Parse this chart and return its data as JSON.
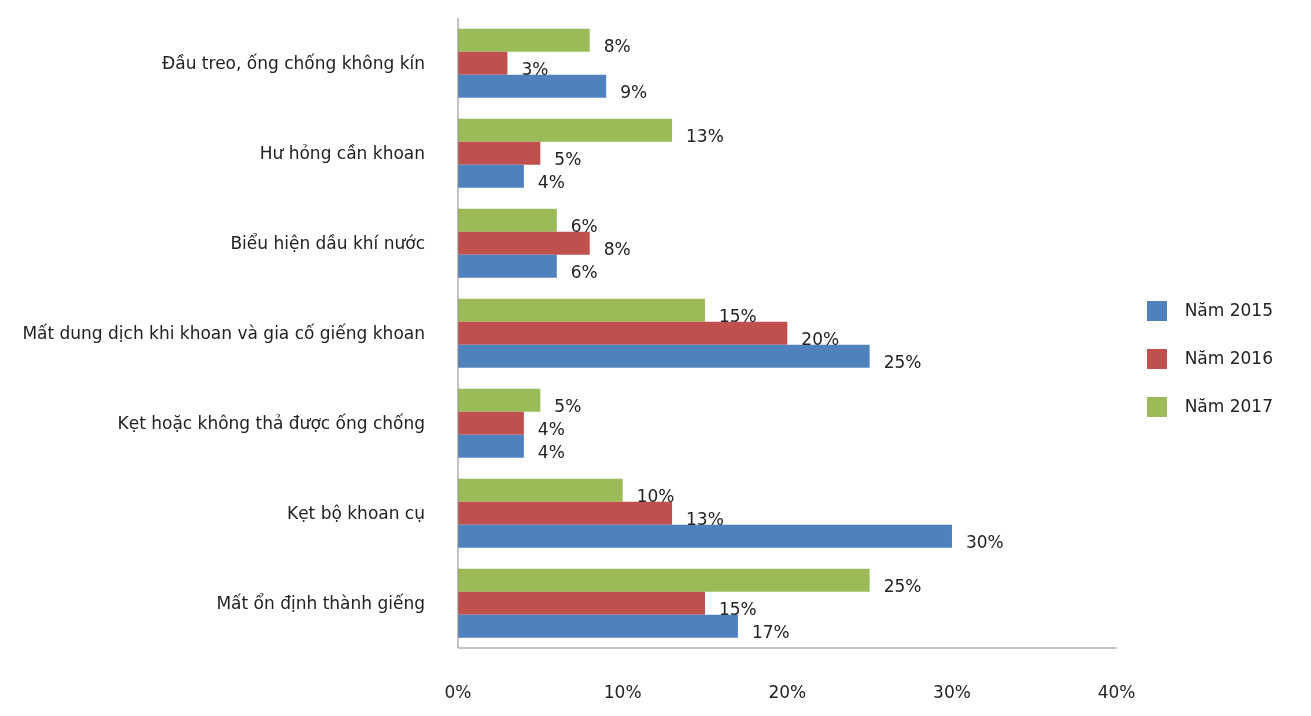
{
  "chart_data": {
    "type": "bar",
    "orientation": "horizontal",
    "categories": [
      "Đầu treo, ống chống không kín",
      "Hư hỏng cần khoan",
      "Biểu hiện dầu khí nước",
      "Mất dung dịch khi khoan và gia cố giếng khoan",
      "Kẹt hoặc không thả được ống chống",
      "Kẹt bộ khoan cụ",
      "Mất ổn định thành giếng"
    ],
    "series": [
      {
        "name": "Năm 2017",
        "color": "#9bbb59",
        "values": [
          8,
          13,
          6,
          15,
          5,
          10,
          25
        ],
        "value_labels": [
          "8%",
          "13%",
          "6%",
          "15%",
          "5%",
          "10%",
          "25%"
        ]
      },
      {
        "name": "Năm 2016",
        "color": "#c0504d",
        "values": [
          3,
          5,
          8,
          20,
          4,
          13,
          15
        ],
        "value_labels": [
          "3%",
          "5%",
          "8%",
          "20%",
          "4%",
          "13%",
          "15%"
        ]
      },
      {
        "name": "Năm 2015",
        "color": "#4f81bd",
        "values": [
          9,
          4,
          6,
          25,
          4,
          30,
          17
        ],
        "value_labels": [
          "9%",
          "4%",
          "6%",
          "25%",
          "4%",
          "30%",
          "17%"
        ]
      }
    ],
    "xlim": [
      0,
      40
    ],
    "xticks": [
      {
        "value": 0,
        "label": "0%"
      },
      {
        "value": 10,
        "label": "10%"
      },
      {
        "value": 20,
        "label": "20%"
      },
      {
        "value": 30,
        "label": "30%"
      },
      {
        "value": 40,
        "label": "40%"
      }
    ],
    "grid": false,
    "legend": "right"
  }
}
